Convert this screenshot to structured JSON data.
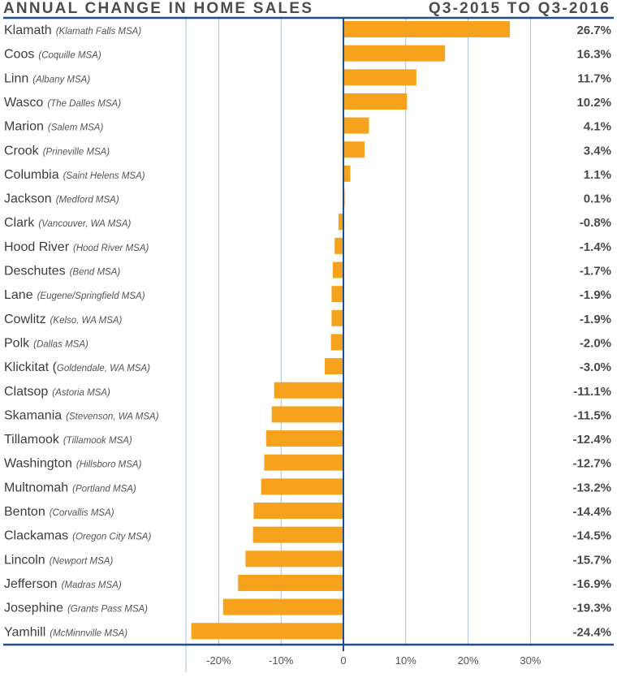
{
  "header": {
    "title": "ANNUAL CHANGE IN HOME SALES",
    "period": "Q3-2015 TO Q3-2016"
  },
  "colors": {
    "bar": "#F7A21D",
    "axis": "#1F4E8C",
    "grid": "#A9BFDC",
    "text": "#4A4A4A"
  },
  "chart_data": {
    "type": "bar",
    "orientation": "horizontal",
    "title": "ANNUAL CHANGE IN HOME SALES",
    "subtitle": "Q3-2015 TO Q3-2016",
    "xlabel": "",
    "ylabel": "",
    "xlim": [
      -25,
      35
    ],
    "grid": true,
    "x_ticks": [
      -20,
      -10,
      0,
      10,
      20,
      30
    ],
    "x_tick_labels": [
      "-20%",
      "-10%",
      "0",
      "10%",
      "20%",
      "30%"
    ],
    "categories": [
      {
        "name": "Klamath",
        "msa": "(Klamath Falls MSA)"
      },
      {
        "name": "Coos",
        "msa": "(Coquille MSA)"
      },
      {
        "name": "Linn",
        "msa": "(Albany MSA)"
      },
      {
        "name": "Wasco",
        "msa": "(The Dalles MSA)"
      },
      {
        "name": "Marion",
        "msa": "(Salem MSA)"
      },
      {
        "name": "Crook",
        "msa": "(Prineville MSA)"
      },
      {
        "name": "Columbia",
        "msa": "(Saint Helens MSA)"
      },
      {
        "name": "Jackson",
        "msa": "(Medford MSA)"
      },
      {
        "name": "Clark",
        "msa": "(Vancouver, WA MSA)"
      },
      {
        "name": "Hood River",
        "msa": "(Hood River MSA)"
      },
      {
        "name": "Deschutes",
        "msa": "(Bend MSA)"
      },
      {
        "name": "Lane",
        "msa": "(Eugene/Springfield MSA)"
      },
      {
        "name": "Cowlitz",
        "msa": "(Kelso, WA MSA)"
      },
      {
        "name": "Polk",
        "msa": "(Dallas MSA)"
      },
      {
        "name": "Klickitat (",
        "msa": "Goldendale, WA MSA)"
      },
      {
        "name": "Clatsop",
        "msa": "(Astoria MSA)"
      },
      {
        "name": "Skamania",
        "msa": "(Stevenson, WA MSA)"
      },
      {
        "name": "Tillamook",
        "msa": "(Tillamook MSA)"
      },
      {
        "name": "Washington",
        "msa": "(Hillsboro MSA)"
      },
      {
        "name": "Multnomah",
        "msa": "(Portland MSA)"
      },
      {
        "name": "Benton",
        "msa": "(Corvallis MSA)"
      },
      {
        "name": "Clackamas",
        "msa": "(Oregon City MSA)"
      },
      {
        "name": "Lincoln",
        "msa": "(Newport MSA)"
      },
      {
        "name": "Jefferson",
        "msa": "(Madras MSA)"
      },
      {
        "name": "Josephine",
        "msa": "(Grants Pass MSA)"
      },
      {
        "name": "Yamhill",
        "msa": "(McMinnville MSA)"
      }
    ],
    "values": [
      26.7,
      16.3,
      11.7,
      10.2,
      4.1,
      3.4,
      1.1,
      0.1,
      -0.8,
      -1.4,
      -1.7,
      -1.9,
      -1.9,
      -2.0,
      -3.0,
      -11.1,
      -11.5,
      -12.4,
      -12.7,
      -13.2,
      -14.4,
      -14.5,
      -15.7,
      -16.9,
      -19.3,
      -24.4
    ],
    "value_labels": [
      "26.7%",
      "16.3%",
      "11.7%",
      "10.2%",
      "4.1%",
      "3.4%",
      "1.1%",
      "0.1%",
      "-0.8%",
      "-1.4%",
      "-1.7%",
      "-1.9%",
      "-1.9%",
      "-2.0%",
      "-3.0%",
      "-11.1%",
      "-11.5%",
      "-12.4%",
      "-12.7%",
      "-13.2%",
      "-14.4%",
      "-14.5%",
      "-15.7%",
      "-16.9%",
      "-19.3%",
      "-24.4%"
    ]
  }
}
